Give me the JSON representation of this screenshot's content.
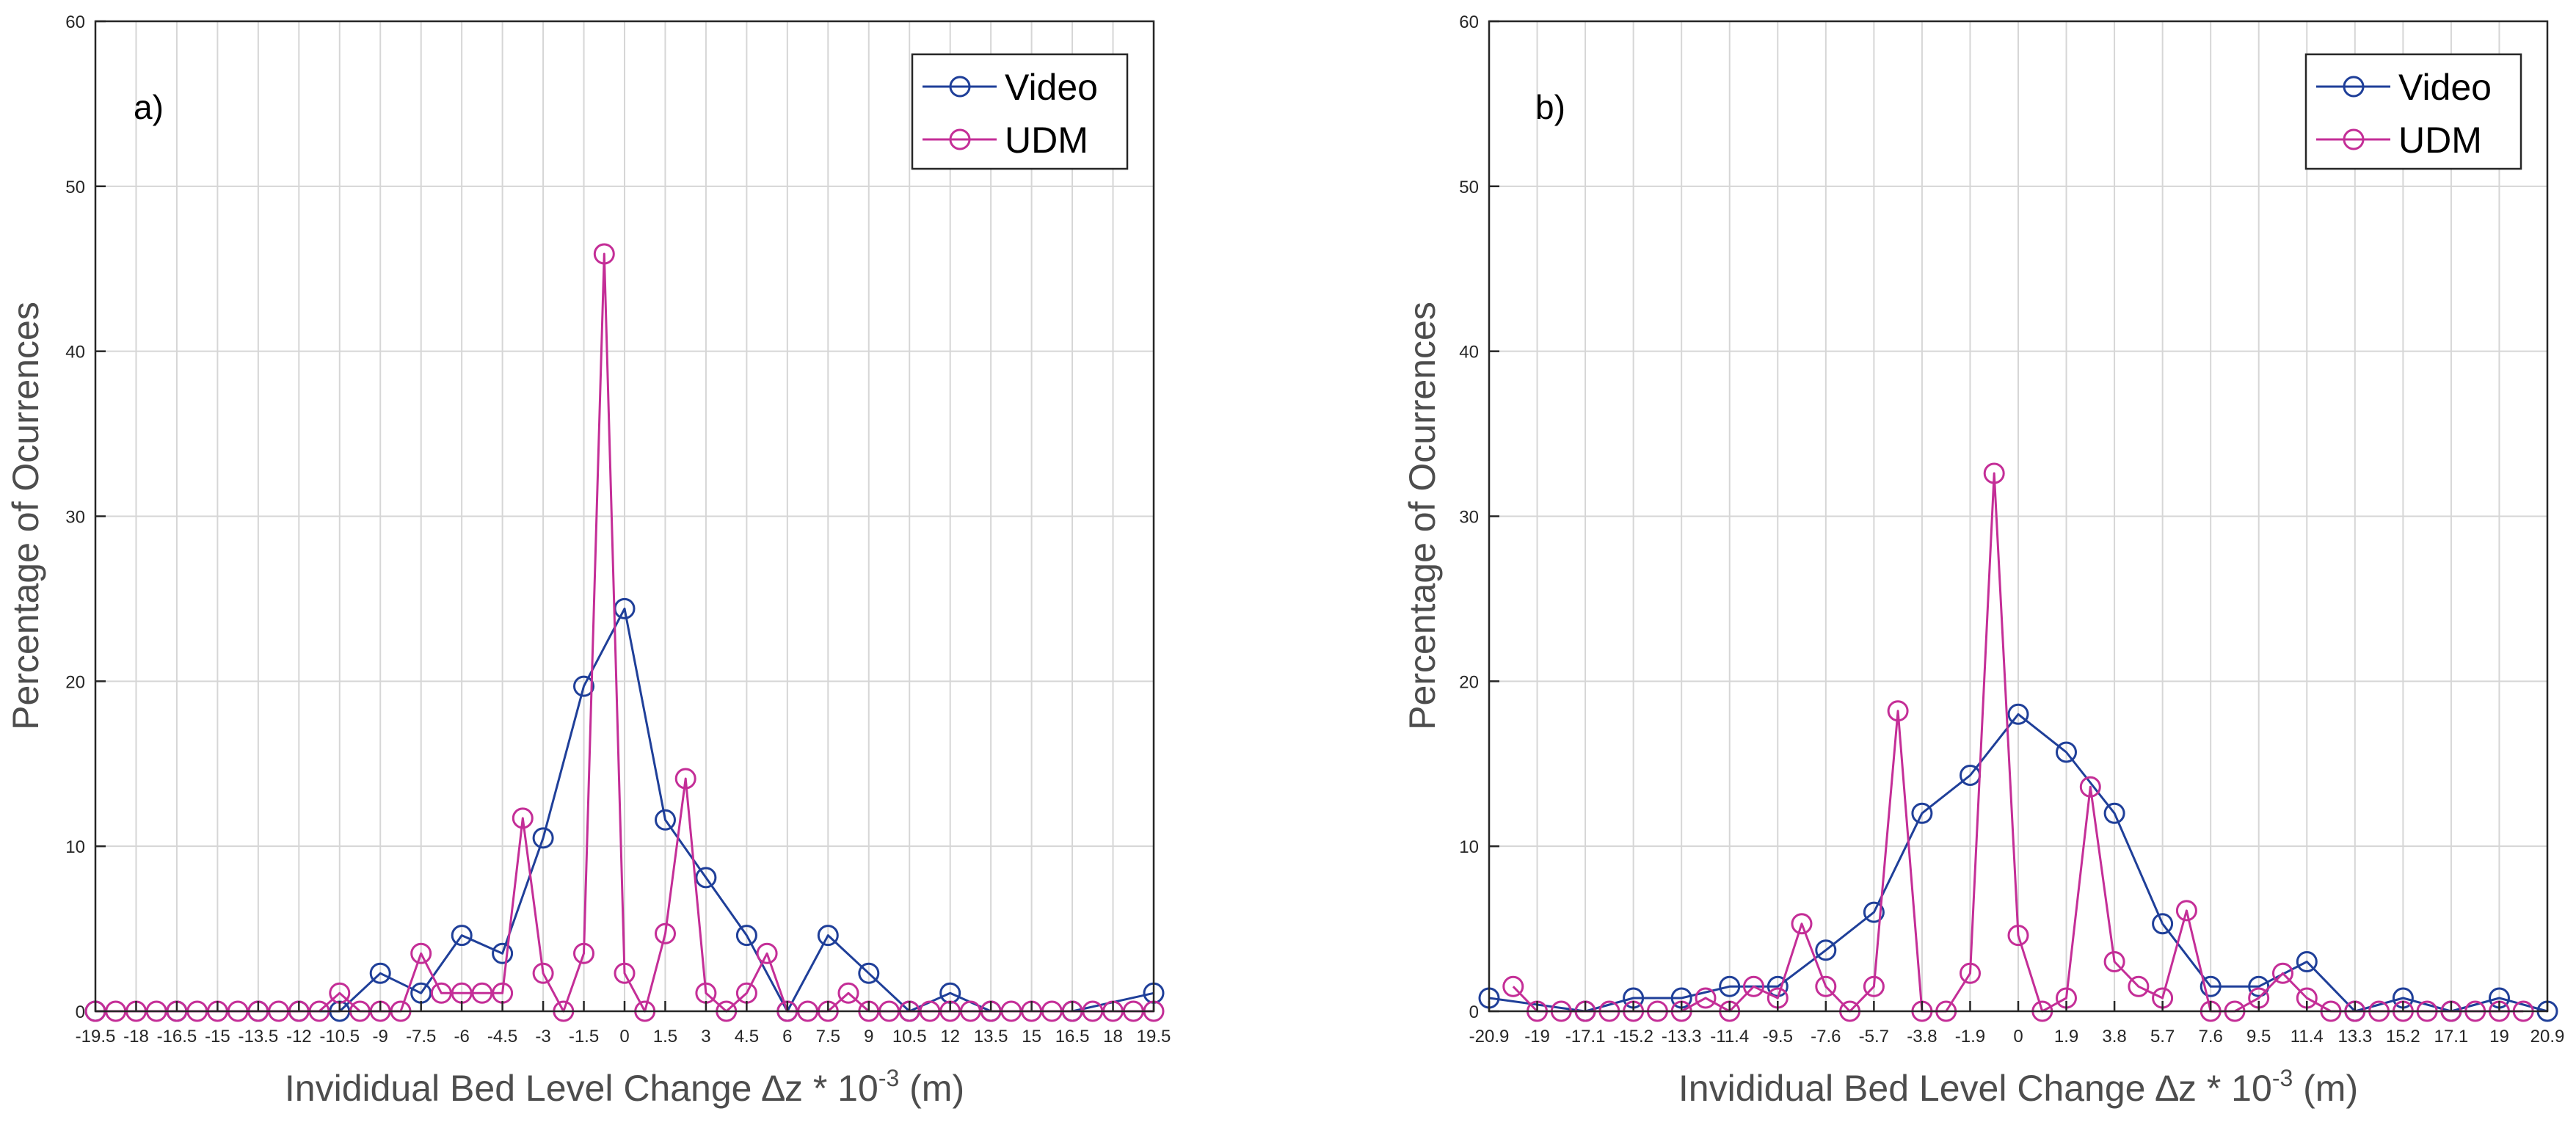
{
  "chart_data": [
    {
      "type": "line",
      "panel_label": "a)",
      "xlabel": "Invididual Bed Level Change ∆z * 10",
      "xlabel_exponent": "-3",
      "xlabel_unit": " (m)",
      "ylabel": "Percentage of Ocurrences",
      "ylim": [
        0,
        60
      ],
      "xlim": [
        -19.5,
        19.5
      ],
      "grid": true,
      "legend_position": "top-right",
      "yticks": [
        0,
        10,
        20,
        30,
        40,
        50,
        60
      ],
      "xtick_labels": [
        "-19.5",
        "-18",
        "-16.5",
        "-15",
        "-13.5",
        "-12",
        "-10.5",
        "-9",
        "-7.5",
        "-6",
        "-4.5",
        "-3",
        "-1.5",
        "0",
        "1.5",
        "3",
        "4.5",
        "6",
        "7.5",
        "9",
        "10.5",
        "12",
        "13.5",
        "15",
        "16.5",
        "18",
        "19.5"
      ],
      "xtick_values": [
        -19.5,
        -18,
        -16.5,
        -15,
        -13.5,
        -12,
        -10.5,
        -9,
        -7.5,
        -6,
        -4.5,
        -3,
        -1.5,
        0,
        1.5,
        3,
        4.5,
        6,
        7.5,
        9,
        10.5,
        12,
        13.5,
        15,
        16.5,
        18,
        19.5
      ],
      "series": [
        {
          "name": "Video",
          "color": "#1f3f99",
          "x": [
            -19.5,
            -16.5,
            -13.5,
            -12,
            -10.5,
            -9,
            -7.5,
            -6,
            -4.5,
            -3,
            -1.5,
            0,
            1.5,
            3,
            4.5,
            6,
            7.5,
            9,
            10.5,
            12,
            13.5,
            16.5,
            19.5
          ],
          "y": [
            0,
            0,
            0,
            0,
            0,
            2.3,
            1.1,
            4.6,
            3.5,
            10.5,
            19.7,
            24.4,
            11.6,
            8.1,
            4.6,
            0,
            4.6,
            2.3,
            0,
            1.1,
            0,
            0,
            1.1
          ]
        },
        {
          "name": "UDM",
          "color": "#c42e97",
          "x": [
            -19.5,
            -18.75,
            -18,
            -17.25,
            -16.5,
            -15.75,
            -15,
            -14.25,
            -13.5,
            -12.75,
            -12,
            -11.25,
            -10.5,
            -9.75,
            -9,
            -8.25,
            -7.5,
            -6.75,
            -6,
            -5.25,
            -4.5,
            -3.75,
            -3,
            -2.25,
            -1.5,
            -0.75,
            0,
            0.75,
            1.5,
            2.25,
            3,
            3.75,
            4.5,
            5.25,
            6,
            6.75,
            7.5,
            8.25,
            9,
            9.75,
            10.5,
            11.25,
            12,
            12.75,
            13.5,
            14.25,
            15,
            15.75,
            16.5,
            17.25,
            18,
            18.75,
            19.5
          ],
          "y": [
            0,
            0,
            0,
            0,
            0,
            0,
            0,
            0,
            0,
            0,
            0,
            0,
            1.1,
            0,
            0,
            0,
            3.5,
            1.1,
            1.1,
            1.1,
            1.1,
            11.7,
            2.3,
            0,
            3.5,
            45.9,
            2.3,
            0,
            4.7,
            14.1,
            1.1,
            0,
            1.1,
            3.5,
            0,
            0,
            0,
            1.1,
            0,
            0,
            0,
            0,
            0,
            0,
            0,
            0,
            0,
            0,
            0,
            0,
            0,
            0,
            0
          ]
        }
      ]
    },
    {
      "type": "line",
      "panel_label": "b)",
      "xlabel": "Invididual Bed Level Change ∆z * 10",
      "xlabel_exponent": "-3",
      "xlabel_unit": " (m)",
      "ylabel": "Percentage of Ocurrences",
      "ylim": [
        0,
        60
      ],
      "xlim": [
        -20.9,
        20.9
      ],
      "grid": true,
      "legend_position": "top-right",
      "yticks": [
        0,
        10,
        20,
        30,
        40,
        50,
        60
      ],
      "xtick_labels": [
        "-20.9",
        "-19",
        "-17.1",
        "-15.2",
        "-13.3",
        "-11.4",
        "-9.5",
        "-7.6",
        "-5.7",
        "-3.8",
        "-1.9",
        "0",
        "1.9",
        "3.8",
        "5.7",
        "7.6",
        "9.5",
        "11.4",
        "13.3",
        "15.2",
        "17.1",
        "19",
        "20.9"
      ],
      "xtick_values": [
        -20.9,
        -19,
        -17.1,
        -15.2,
        -13.3,
        -11.4,
        -9.5,
        -7.6,
        -5.7,
        -3.8,
        -1.9,
        0,
        1.9,
        3.8,
        5.7,
        7.6,
        9.5,
        11.4,
        13.3,
        15.2,
        17.1,
        19,
        20.9
      ],
      "series": [
        {
          "name": "Video",
          "color": "#1f3f99",
          "x": [
            -20.9,
            -17.1,
            -15.2,
            -13.3,
            -11.4,
            -9.5,
            -7.6,
            -5.7,
            -3.8,
            -1.9,
            0,
            1.9,
            3.8,
            5.7,
            7.6,
            9.5,
            11.4,
            13.3,
            15.2,
            17.1,
            19,
            20.9
          ],
          "y": [
            0.8,
            0,
            0.8,
            0.8,
            1.5,
            1.5,
            3.7,
            6,
            12,
            14.3,
            18,
            15.7,
            12,
            5.3,
            1.5,
            1.5,
            3,
            0,
            0.8,
            0,
            0.8,
            0
          ]
        },
        {
          "name": "UDM",
          "color": "#c42e97",
          "x": [
            -19.95,
            -19,
            -18.05,
            -17.1,
            -16.15,
            -15.2,
            -14.25,
            -13.3,
            -12.35,
            -11.4,
            -10.45,
            -9.5,
            -8.55,
            -7.6,
            -6.65,
            -5.7,
            -4.75,
            -3.8,
            -2.85,
            -1.9,
            -0.95,
            0,
            0.95,
            1.9,
            2.85,
            3.8,
            4.75,
            5.7,
            6.65,
            7.6,
            8.55,
            9.5,
            10.45,
            11.4,
            12.35,
            13.3,
            14.25,
            15.2,
            16.15,
            17.1,
            18.05,
            19,
            19.95
          ],
          "y": [
            1.5,
            0,
            0,
            0,
            0,
            0,
            0,
            0,
            0.8,
            0,
            1.5,
            0.8,
            5.3,
            1.5,
            0,
            1.5,
            18.2,
            0,
            0,
            2.3,
            32.6,
            4.6,
            0,
            0.8,
            13.6,
            3,
            1.5,
            0.8,
            6.1,
            0,
            0,
            0.8,
            2.3,
            0.8,
            0,
            0,
            0,
            0,
            0,
            0,
            0,
            0,
            0
          ]
        }
      ]
    }
  ]
}
